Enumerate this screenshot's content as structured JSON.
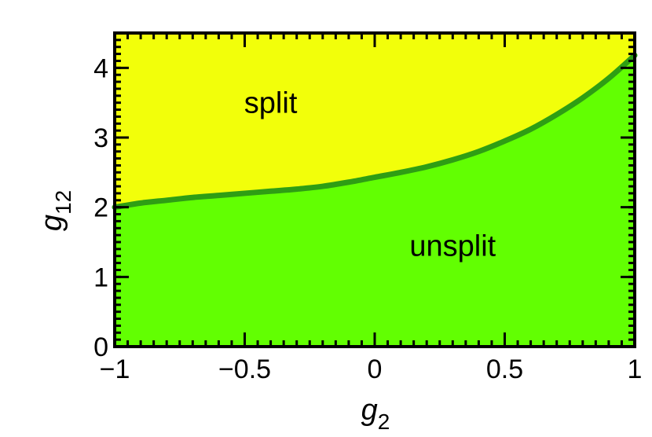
{
  "chart_data": {
    "type": "area",
    "title": "",
    "xlabel": "g",
    "xlabel_sub": "2",
    "ylabel": "g",
    "ylabel_sub": "12",
    "xlim": [
      -1,
      1
    ],
    "ylim": [
      0,
      4.5
    ],
    "x_ticks": [
      -1,
      -0.5,
      0,
      0.5,
      1
    ],
    "x_tick_labels": [
      "−1",
      "−0.5",
      "0",
      "0.5",
      "1"
    ],
    "y_ticks": [
      0,
      1,
      2,
      3,
      4
    ],
    "y_tick_labels": [
      "0",
      "1",
      "2",
      "3",
      "4"
    ],
    "grid": false,
    "boundary": {
      "x": [
        -1,
        -0.9,
        -0.8,
        -0.7,
        -0.6,
        -0.5,
        -0.4,
        -0.3,
        -0.2,
        -0.1,
        0,
        0.1,
        0.2,
        0.3,
        0.4,
        0.5,
        0.6,
        0.7,
        0.8,
        0.9,
        1
      ],
      "y": [
        2.0,
        2.06,
        2.1,
        2.14,
        2.17,
        2.2,
        2.23,
        2.26,
        2.3,
        2.36,
        2.43,
        2.5,
        2.58,
        2.68,
        2.8,
        2.95,
        3.12,
        3.33,
        3.57,
        3.85,
        4.18
      ]
    },
    "regions": [
      {
        "label": "split",
        "x": -0.4,
        "y": 3.5,
        "color": "#f2ff0a"
      },
      {
        "label": "unsplit",
        "x": 0.3,
        "y": 1.45,
        "color": "#62ff02"
      }
    ],
    "boundary_color": "#2e9e14"
  }
}
